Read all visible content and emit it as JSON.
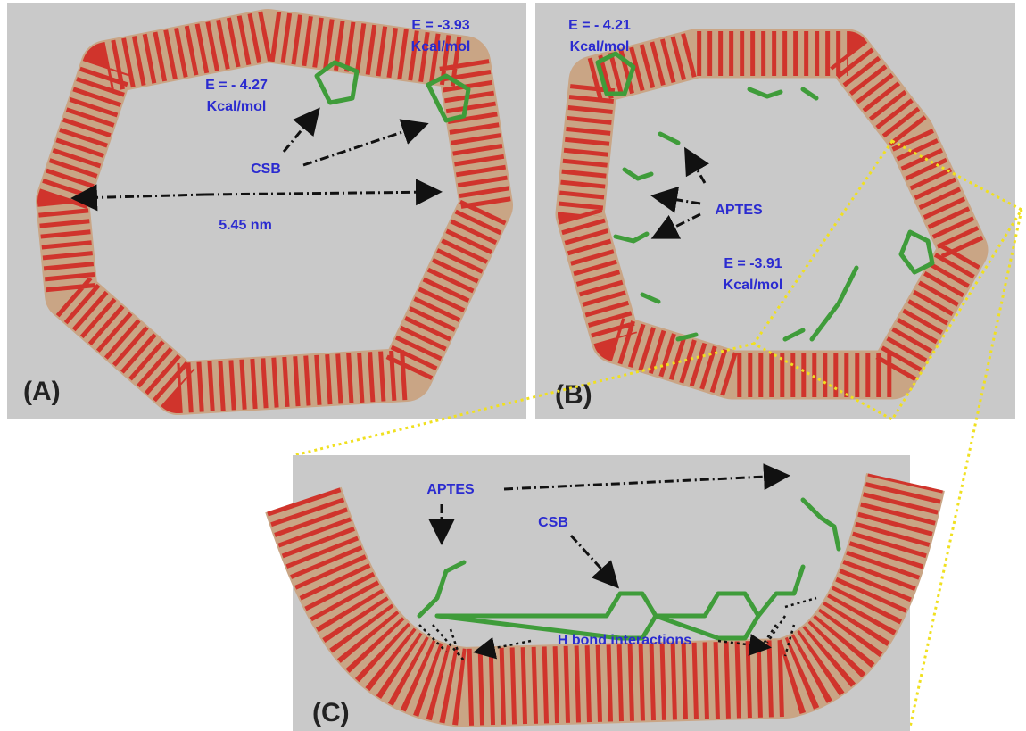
{
  "panels": [
    {
      "label": "(A)",
      "annotations": [
        {
          "lines": [
            "E = -3.93",
            "Kcal/mol"
          ]
        },
        {
          "lines": [
            "E = - 4.27",
            "Kcal/mol"
          ]
        },
        {
          "lines": [
            "CSB"
          ]
        },
        {
          "lines": [
            "5.45 nm"
          ]
        }
      ]
    },
    {
      "label": "(B)",
      "annotations": [
        {
          "lines": [
            "E = - 4.21",
            "Kcal/mol"
          ]
        },
        {
          "lines": [
            "APTES"
          ]
        },
        {
          "lines": [
            "E = -3.91",
            "Kcal/mol"
          ]
        }
      ]
    },
    {
      "label": "(C)",
      "annotations": [
        {
          "lines": [
            "APTES"
          ]
        },
        {
          "lines": [
            "CSB"
          ]
        },
        {
          "lines": [
            "H bond interactions"
          ]
        }
      ]
    }
  ]
}
